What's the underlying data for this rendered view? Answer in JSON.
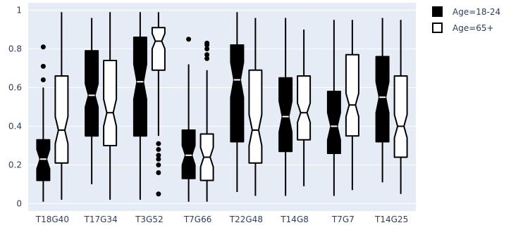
{
  "chart_data": {
    "type": "box",
    "notched": true,
    "categories": [
      "T18G40",
      "T17G34",
      "T3G52",
      "T7G66",
      "T22G48",
      "T14G8",
      "T7G7",
      "T14G25"
    ],
    "y_ticks": [
      "0",
      "0.2",
      "0.4",
      "0.6",
      "0.8",
      "1"
    ],
    "ylim": [
      -0.02,
      1.01
    ],
    "grid": true,
    "legend_position": "top-right",
    "series": [
      {
        "name": "Age=18-24",
        "fill": "#000000",
        "line": "#000000",
        "boxes": [
          {
            "lower": 0.01,
            "q1": 0.12,
            "median": 0.23,
            "q3": 0.33,
            "upper": 0.6,
            "notch": 0.05,
            "outliers": [
              0.64,
              0.71,
              0.81
            ]
          },
          {
            "lower": 0.1,
            "q1": 0.35,
            "median": 0.56,
            "q3": 0.79,
            "upper": 0.96,
            "notch": 0.06,
            "outliers": []
          },
          {
            "lower": 0.02,
            "q1": 0.35,
            "median": 0.63,
            "q3": 0.86,
            "upper": 0.99,
            "notch": 0.09,
            "outliers": []
          },
          {
            "lower": 0.01,
            "q1": 0.13,
            "median": 0.25,
            "q3": 0.38,
            "upper": 0.72,
            "notch": 0.05,
            "outliers": [
              0.85
            ]
          },
          {
            "lower": 0.06,
            "q1": 0.32,
            "median": 0.64,
            "q3": 0.82,
            "upper": 0.99,
            "notch": 0.09,
            "outliers": []
          },
          {
            "lower": 0.04,
            "q1": 0.27,
            "median": 0.45,
            "q3": 0.65,
            "upper": 0.96,
            "notch": 0.08,
            "outliers": []
          },
          {
            "lower": 0.04,
            "q1": 0.26,
            "median": 0.4,
            "q3": 0.58,
            "upper": 0.95,
            "notch": 0.07,
            "outliers": []
          },
          {
            "lower": 0.11,
            "q1": 0.32,
            "median": 0.55,
            "q3": 0.76,
            "upper": 0.96,
            "notch": 0.08,
            "outliers": []
          }
        ]
      },
      {
        "name": "Age=65+",
        "fill": "#ffffff",
        "line": "#000000",
        "boxes": [
          {
            "lower": 0.02,
            "q1": 0.21,
            "median": 0.38,
            "q3": 0.66,
            "upper": 0.99,
            "notch": 0.07,
            "outliers": []
          },
          {
            "lower": 0.02,
            "q1": 0.3,
            "median": 0.47,
            "q3": 0.74,
            "upper": 0.99,
            "notch": 0.07,
            "outliers": []
          },
          {
            "lower": 0.35,
            "q1": 0.69,
            "median": 0.84,
            "q3": 0.91,
            "upper": 0.99,
            "notch": 0.04,
            "outliers": [
              0.05,
              0.16,
              0.2,
              0.23,
              0.25,
              0.28,
              0.31
            ]
          },
          {
            "lower": 0.01,
            "q1": 0.12,
            "median": 0.24,
            "q3": 0.36,
            "upper": 0.69,
            "notch": 0.05,
            "outliers": [
              0.75,
              0.77,
              0.8,
              0.82,
              0.83
            ]
          },
          {
            "lower": 0.04,
            "q1": 0.21,
            "median": 0.38,
            "q3": 0.69,
            "upper": 0.96,
            "notch": 0.08,
            "outliers": []
          },
          {
            "lower": 0.09,
            "q1": 0.33,
            "median": 0.47,
            "q3": 0.66,
            "upper": 0.9,
            "notch": 0.05,
            "outliers": []
          },
          {
            "lower": 0.07,
            "q1": 0.35,
            "median": 0.51,
            "q3": 0.77,
            "upper": 0.95,
            "notch": 0.06,
            "outliers": []
          },
          {
            "lower": 0.05,
            "q1": 0.24,
            "median": 0.4,
            "q3": 0.66,
            "upper": 0.95,
            "notch": 0.06,
            "outliers": []
          }
        ]
      }
    ]
  }
}
